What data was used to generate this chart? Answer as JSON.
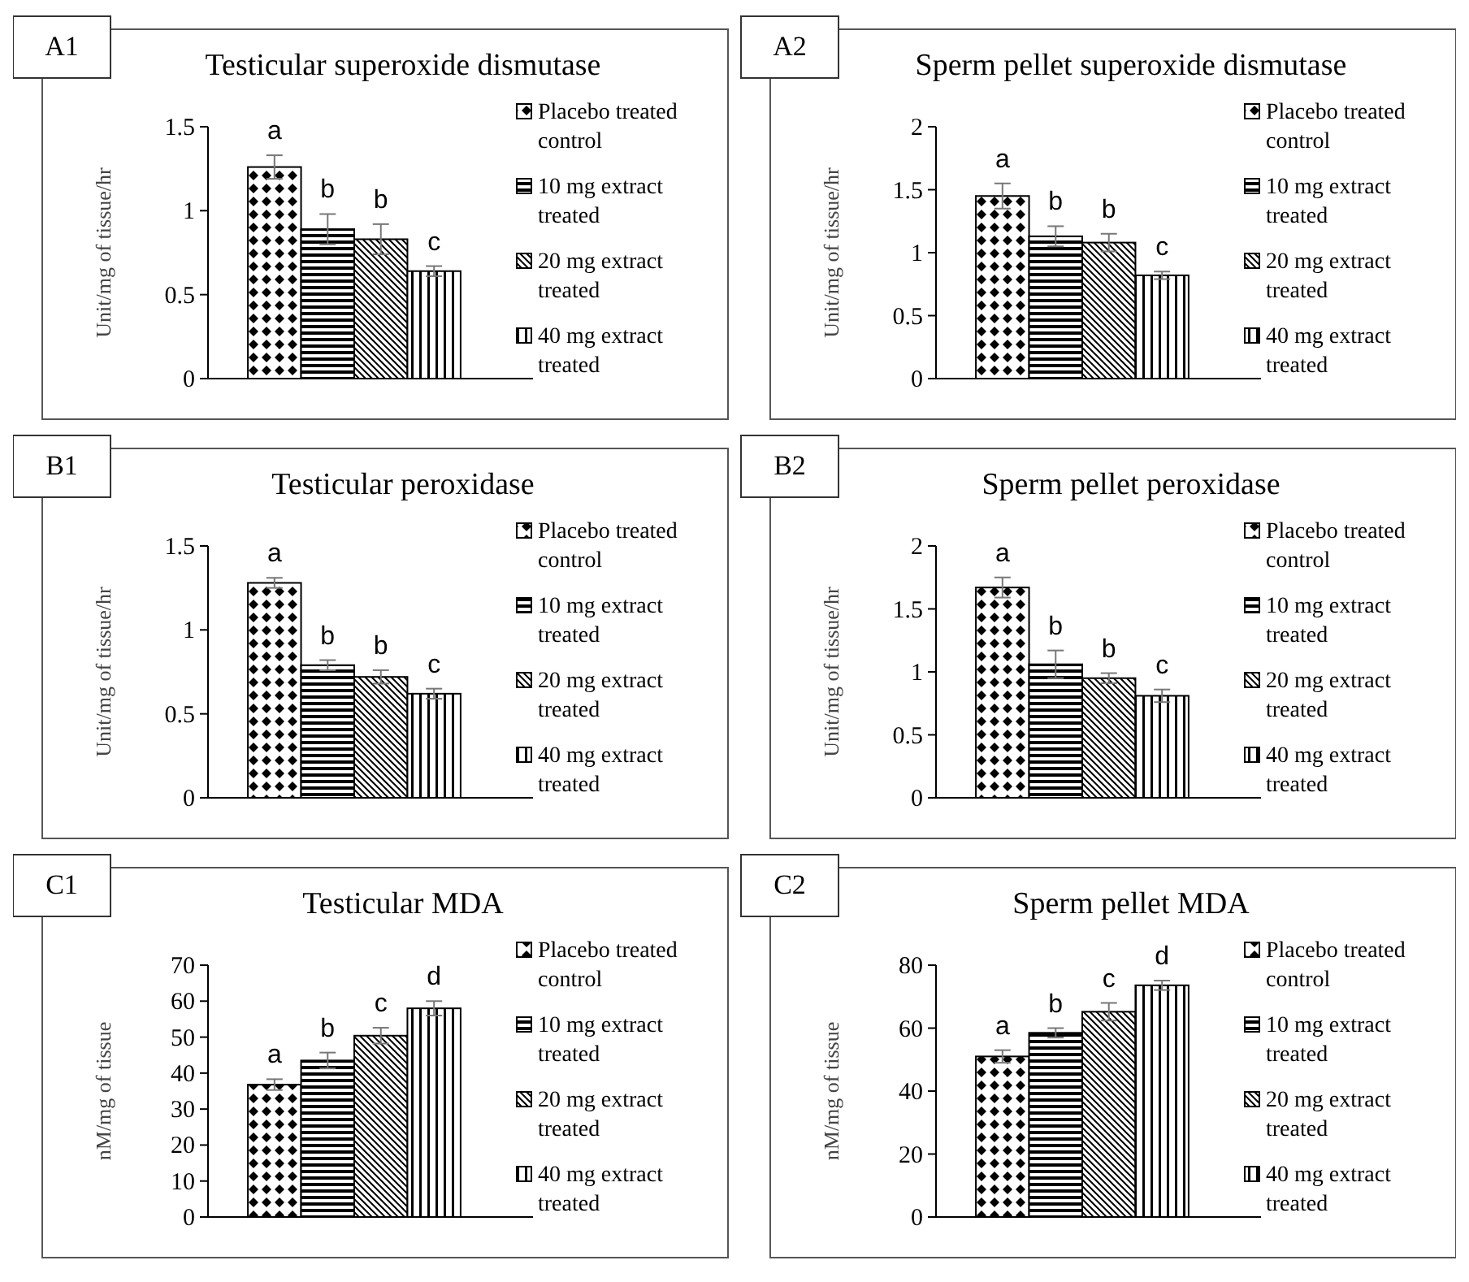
{
  "chart_data": [
    {
      "type": "bar",
      "title": "Testicular superoxide dismutase",
      "ylabel": "Unit/mg  of tissue/hr",
      "annotations": [
        "A1"
      ],
      "categories": [
        null
      ],
      "ylim": [
        0,
        1.5
      ],
      "yticks": [
        0,
        0.5,
        1,
        1.5
      ],
      "legend": "right",
      "series": [
        {
          "name": "Placebo treated control",
          "color": "#000000",
          "values": [
            1.26
          ],
          "errors": [
            0.07
          ],
          "value_labels": [
            "a"
          ]
        },
        {
          "name": "10 mg extract treated",
          "color": "#000000",
          "values": [
            0.89
          ],
          "errors": [
            0.09
          ],
          "value_labels": [
            "b"
          ]
        },
        {
          "name": "20 mg extract treated",
          "color": "#000000",
          "values": [
            0.83
          ],
          "errors": [
            0.09
          ],
          "value_labels": [
            "b"
          ]
        },
        {
          "name": "40 mg extract treated",
          "color": "#000000",
          "values": [
            0.64
          ],
          "errors": [
            0.03
          ],
          "value_labels": [
            "c"
          ]
        }
      ]
    },
    {
      "type": "bar",
      "title": "Sperm pellet superoxide dismutase",
      "ylabel": "Unit/mg  of tissue/hr",
      "annotations": [
        "A2"
      ],
      "categories": [
        null
      ],
      "ylim": [
        0,
        2
      ],
      "yticks": [
        0,
        0.5,
        1,
        1.5,
        2
      ],
      "legend": "right",
      "series": [
        {
          "name": "Placebo treated control",
          "color": "#000000",
          "values": [
            1.45
          ],
          "errors": [
            0.1
          ],
          "value_labels": [
            "a"
          ]
        },
        {
          "name": "10 mg extract treated",
          "color": "#000000",
          "values": [
            1.13
          ],
          "errors": [
            0.08
          ],
          "value_labels": [
            "b"
          ]
        },
        {
          "name": "20 mg extract treated",
          "color": "#000000",
          "values": [
            1.08
          ],
          "errors": [
            0.07
          ],
          "value_labels": [
            "b"
          ]
        },
        {
          "name": "40 mg extract treated",
          "color": "#000000",
          "values": [
            0.82
          ],
          "errors": [
            0.03
          ],
          "value_labels": [
            "c"
          ]
        }
      ]
    },
    {
      "type": "bar",
      "title": "Testicular peroxidase",
      "ylabel": "Unit/mg  of tissue/hr",
      "annotations": [
        "B1"
      ],
      "categories": [
        null
      ],
      "ylim": [
        0,
        1.5
      ],
      "yticks": [
        0,
        0.5,
        1,
        1.5
      ],
      "legend": "right",
      "series": [
        {
          "name": "Placebo treated control",
          "color": "#000000",
          "values": [
            1.28
          ],
          "errors": [
            0.03
          ],
          "value_labels": [
            "a"
          ]
        },
        {
          "name": "10 mg extract treated",
          "color": "#000000",
          "values": [
            0.79
          ],
          "errors": [
            0.03
          ],
          "value_labels": [
            "b"
          ]
        },
        {
          "name": "20 mg extract treated",
          "color": "#000000",
          "values": [
            0.72
          ],
          "errors": [
            0.04
          ],
          "value_labels": [
            "b"
          ]
        },
        {
          "name": "40 mg extract treated",
          "color": "#000000",
          "values": [
            0.62
          ],
          "errors": [
            0.03
          ],
          "value_labels": [
            "c"
          ]
        }
      ]
    },
    {
      "type": "bar",
      "title": "Sperm pellet peroxidase",
      "ylabel": "Unit/mg  of tissue/hr",
      "annotations": [
        "B2"
      ],
      "categories": [
        null
      ],
      "ylim": [
        0,
        2
      ],
      "yticks": [
        0,
        0.5,
        1,
        1.5,
        2
      ],
      "legend": "right",
      "series": [
        {
          "name": "Placebo treated control",
          "color": "#000000",
          "values": [
            1.67
          ],
          "errors": [
            0.08
          ],
          "value_labels": [
            "a"
          ]
        },
        {
          "name": "10 mg extract treated",
          "color": "#000000",
          "values": [
            1.06
          ],
          "errors": [
            0.11
          ],
          "value_labels": [
            "b"
          ]
        },
        {
          "name": "20 mg extract treated",
          "color": "#000000",
          "values": [
            0.95
          ],
          "errors": [
            0.04
          ],
          "value_labels": [
            "b"
          ]
        },
        {
          "name": "40 mg extract treated",
          "color": "#000000",
          "values": [
            0.81
          ],
          "errors": [
            0.05
          ],
          "value_labels": [
            "c"
          ]
        }
      ]
    },
    {
      "type": "bar",
      "title": "Testicular MDA",
      "ylabel": "nM/mg of tissue",
      "annotations": [
        "C1"
      ],
      "categories": [
        null
      ],
      "ylim": [
        0,
        70
      ],
      "yticks": [
        0,
        10,
        20,
        30,
        40,
        50,
        60,
        70
      ],
      "legend": "right",
      "series": [
        {
          "name": "Placebo treated control",
          "color": "#000000",
          "values": [
            36.8
          ],
          "errors": [
            1.5
          ],
          "value_labels": [
            "a"
          ]
        },
        {
          "name": "10 mg extract treated",
          "color": "#000000",
          "values": [
            43.5
          ],
          "errors": [
            2.2
          ],
          "value_labels": [
            "b"
          ]
        },
        {
          "name": "20 mg extract treated",
          "color": "#000000",
          "values": [
            50.4
          ],
          "errors": [
            2.2
          ],
          "value_labels": [
            "c"
          ]
        },
        {
          "name": "40 mg extract treated",
          "color": "#000000",
          "values": [
            58
          ],
          "errors": [
            2
          ],
          "value_labels": [
            "d"
          ]
        }
      ]
    },
    {
      "type": "bar",
      "title": "Sperm pellet MDA",
      "ylabel": "nM/mg of tissue",
      "annotations": [
        "C2"
      ],
      "categories": [
        null
      ],
      "ylim": [
        0,
        80
      ],
      "yticks": [
        0,
        20,
        40,
        60,
        80
      ],
      "legend": "right",
      "series": [
        {
          "name": "Placebo treated control",
          "color": "#000000",
          "values": [
            51
          ],
          "errors": [
            2
          ],
          "value_labels": [
            "a"
          ]
        },
        {
          "name": "10 mg extract treated",
          "color": "#000000",
          "values": [
            58.5
          ],
          "errors": [
            1.5
          ],
          "value_labels": [
            "b"
          ]
        },
        {
          "name": "20 mg extract treated",
          "color": "#000000",
          "values": [
            65.2
          ],
          "errors": [
            2.8
          ],
          "value_labels": [
            "c"
          ]
        },
        {
          "name": "40 mg extract treated",
          "color": "#000000",
          "values": [
            73.6
          ],
          "errors": [
            1.5
          ],
          "value_labels": [
            "d"
          ]
        }
      ]
    }
  ]
}
